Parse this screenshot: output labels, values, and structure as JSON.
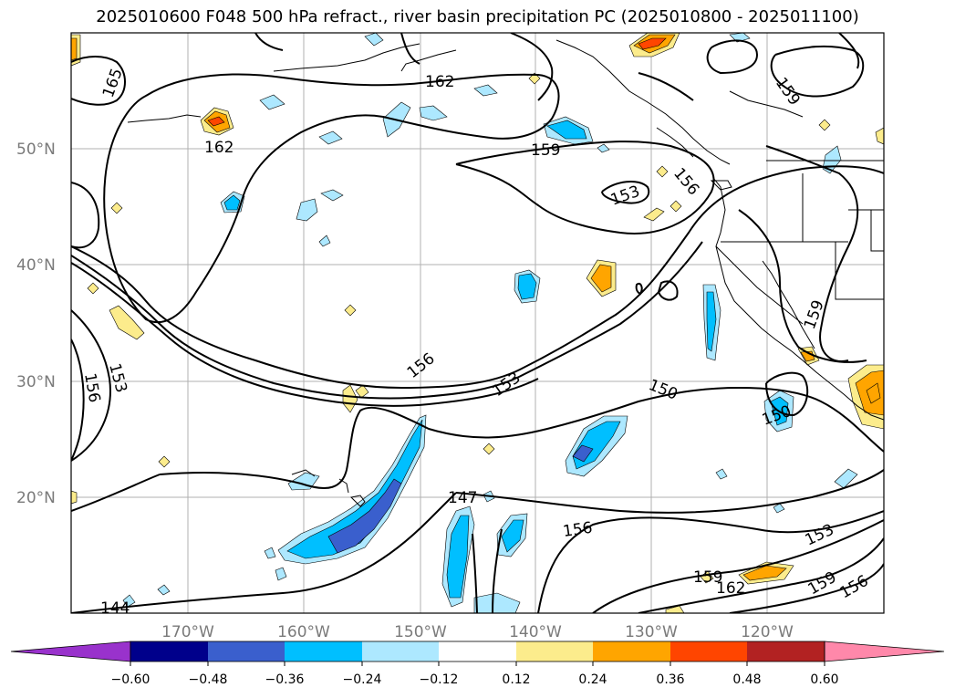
{
  "title": "2025010600 F048 500 hPa refract., river basin precipitation PC (2025010800 - 2025011100)",
  "map": {
    "lat_labels": [
      "50°N",
      "40°N",
      "30°N",
      "20°N"
    ],
    "lon_labels": [
      "170°W",
      "160°W",
      "150°W",
      "140°W",
      "130°W",
      "120°W"
    ],
    "contour_labels": [
      "165",
      "162",
      "162",
      "159",
      "156",
      "153",
      "156",
      "153",
      "156",
      "153",
      "150",
      "150",
      "147",
      "156",
      "159",
      "162",
      "153",
      "159",
      "156",
      "144",
      "159"
    ]
  },
  "colorbar": {
    "colors": [
      "#9932cc",
      "#00008b",
      "#3a5fcd",
      "#00bfff",
      "#ade8ff",
      "#ffffff",
      "#fcec8c",
      "#ffa500",
      "#ff4500",
      "#b22222",
      "#ff88aa"
    ],
    "tick_labels": [
      "−0.60",
      "−0.48",
      "−0.36",
      "−0.24",
      "−0.12",
      "0.12",
      "0.24",
      "0.36",
      "0.48",
      "0.60"
    ]
  }
}
